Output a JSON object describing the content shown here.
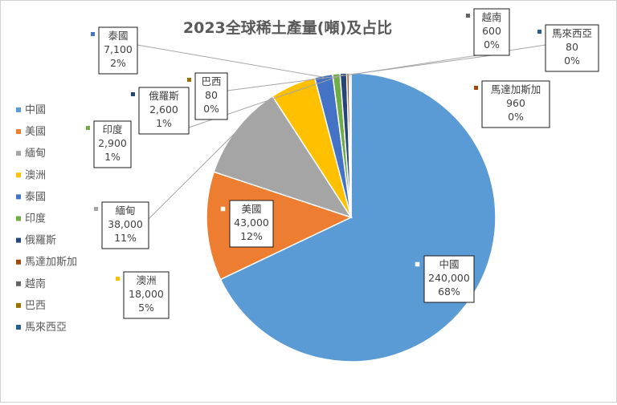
{
  "chart_data": {
    "type": "pie",
    "title": "2023全球稀土產量(噸)及占比",
    "categories": [
      "中國",
      "美國",
      "緬甸",
      "澳洲",
      "泰國",
      "印度",
      "俄羅斯",
      "馬達加斯加",
      "越南",
      "巴西",
      "馬來西亞"
    ],
    "values": [
      240000,
      43000,
      38000,
      18000,
      7100,
      2900,
      2600,
      960,
      600,
      80,
      80
    ],
    "value_labels": [
      "240,000",
      "43,000",
      "38,000",
      "18,000",
      "7,100",
      "2,900",
      "2,600",
      "960",
      "600",
      "80",
      "80"
    ],
    "percent_labels": [
      "68%",
      "12%",
      "11%",
      "5%",
      "2%",
      "1%",
      "1%",
      "0%",
      "0%",
      "0%",
      "0%"
    ],
    "colors": [
      "#5b9bd5",
      "#ed7d31",
      "#a5a5a5",
      "#ffc000",
      "#4472c4",
      "#70ad47",
      "#264478",
      "#9e480e",
      "#636363",
      "#997300",
      "#255e91"
    ],
    "legend_position": "left",
    "start_angle": "12 o'clock, clockwise"
  }
}
